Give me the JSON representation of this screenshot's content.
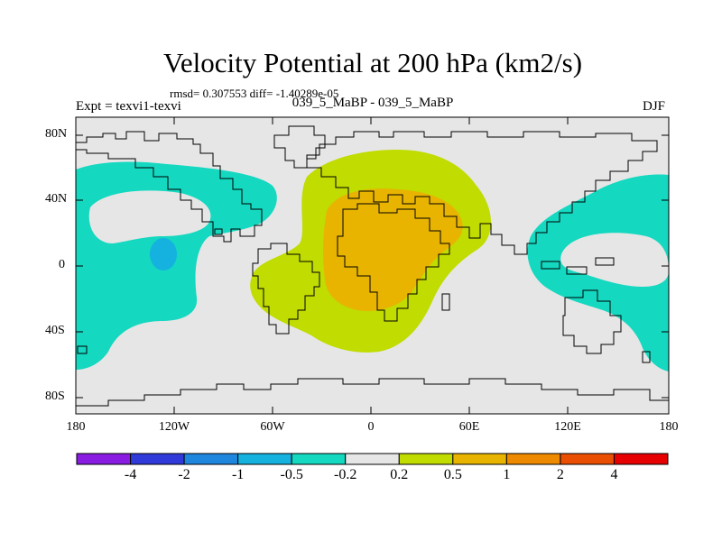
{
  "title": "Velocity Potential at 200 hPa (km2/s)",
  "stats_line": "rmsd= 0.307553 diff= -1.40289e-05",
  "experiment_label": "Expt = texvi1-texvi",
  "period_label": "039_5_MaBP - 039_5_MaBP",
  "season_label": "DJF",
  "map": {
    "lat_ticks": [
      "80N",
      "40N",
      "0",
      "40S",
      "80S"
    ],
    "lon_ticks": [
      "180",
      "120W",
      "60W",
      "0",
      "60E",
      "120E",
      "180"
    ]
  },
  "colorbar": {
    "labels": [
      "-4",
      "-2",
      "-1",
      "-0.5",
      "-0.2",
      "0.2",
      "0.5",
      "1",
      "2",
      "4"
    ],
    "colors": [
      "#8a1be0",
      "#2f3ad8",
      "#1e86dc",
      "#15b2e0",
      "#14d8c0",
      "#e6e6e6",
      "#c0dc00",
      "#e8b400",
      "#ee8a00",
      "#ea4e00",
      "#e60000"
    ]
  },
  "colors": {
    "background": "#e6e6e6",
    "neg_small": "#14d8c0",
    "neg_mid": "#15b2e0",
    "pos_small": "#c0dc00",
    "pos_mid": "#e8b400",
    "coast": "#000000"
  }
}
